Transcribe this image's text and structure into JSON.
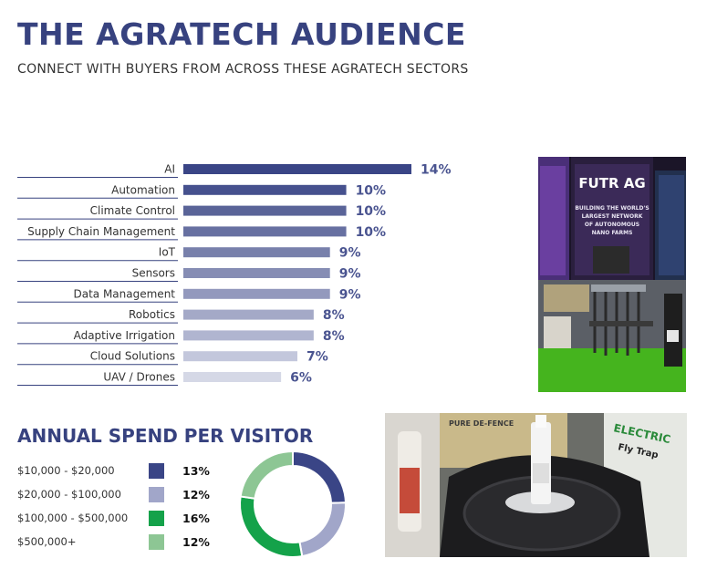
{
  "header": {
    "title": "THE AGRATECH AUDIENCE",
    "subtitle": "CONNECT WITH BUYERS FROM ACROSS THESE AGRATECH SECTORS"
  },
  "spend": {
    "title": "ANNUAL SPEND PER VISITOR"
  },
  "photos": {
    "photo1": {
      "banner_brand": "FUTR AG",
      "banner_text": [
        "BUILDING THE WORLD'S",
        "LARGEST NETWORK",
        "OF AUTONOMOUS",
        "NANO FARMS"
      ]
    },
    "photo2": {
      "label_a": "PURE DE-FENCE",
      "label_b": "ELECTRIC",
      "label_c": "Fly Trap"
    }
  },
  "chart_data": [
    {
      "type": "bar",
      "orientation": "horizontal",
      "categories": [
        "AI",
        "Automation",
        "Climate Control",
        "Supply Chain Management",
        "IoT",
        "Sensors",
        "Data Management",
        "Robotics",
        "Adaptive Irrigation",
        "Cloud Solutions",
        "UAV / Drones"
      ],
      "values": [
        14,
        10,
        10,
        10,
        9,
        9,
        9,
        8,
        8,
        7,
        6
      ],
      "value_labels": [
        "14%",
        "10%",
        "10%",
        "10%",
        "9%",
        "9%",
        "9%",
        "8%",
        "8%",
        "7%",
        "6%"
      ],
      "colors": [
        "#3a4586",
        "#46518e",
        "#5a6498",
        "#6770a1",
        "#7880ab",
        "#868db4",
        "#9399bd",
        "#a4a9c7",
        "#b0b5d0",
        "#c3c7dc",
        "#d5d8e6"
      ],
      "xlim": [
        0,
        14
      ],
      "grid": false
    },
    {
      "type": "pie",
      "style": "donut",
      "categories": [
        "$10,000 - $20,000",
        "$20,000 - $100,000",
        "$100,000 - $500,000",
        "$500,000+"
      ],
      "values": [
        13,
        12,
        16,
        12
      ],
      "value_labels": [
        "13%",
        "12%",
        "16%",
        "12%"
      ],
      "colors": [
        "#3a4586",
        "#a1a6c9",
        "#14a24a",
        "#8dc694"
      ]
    }
  ]
}
